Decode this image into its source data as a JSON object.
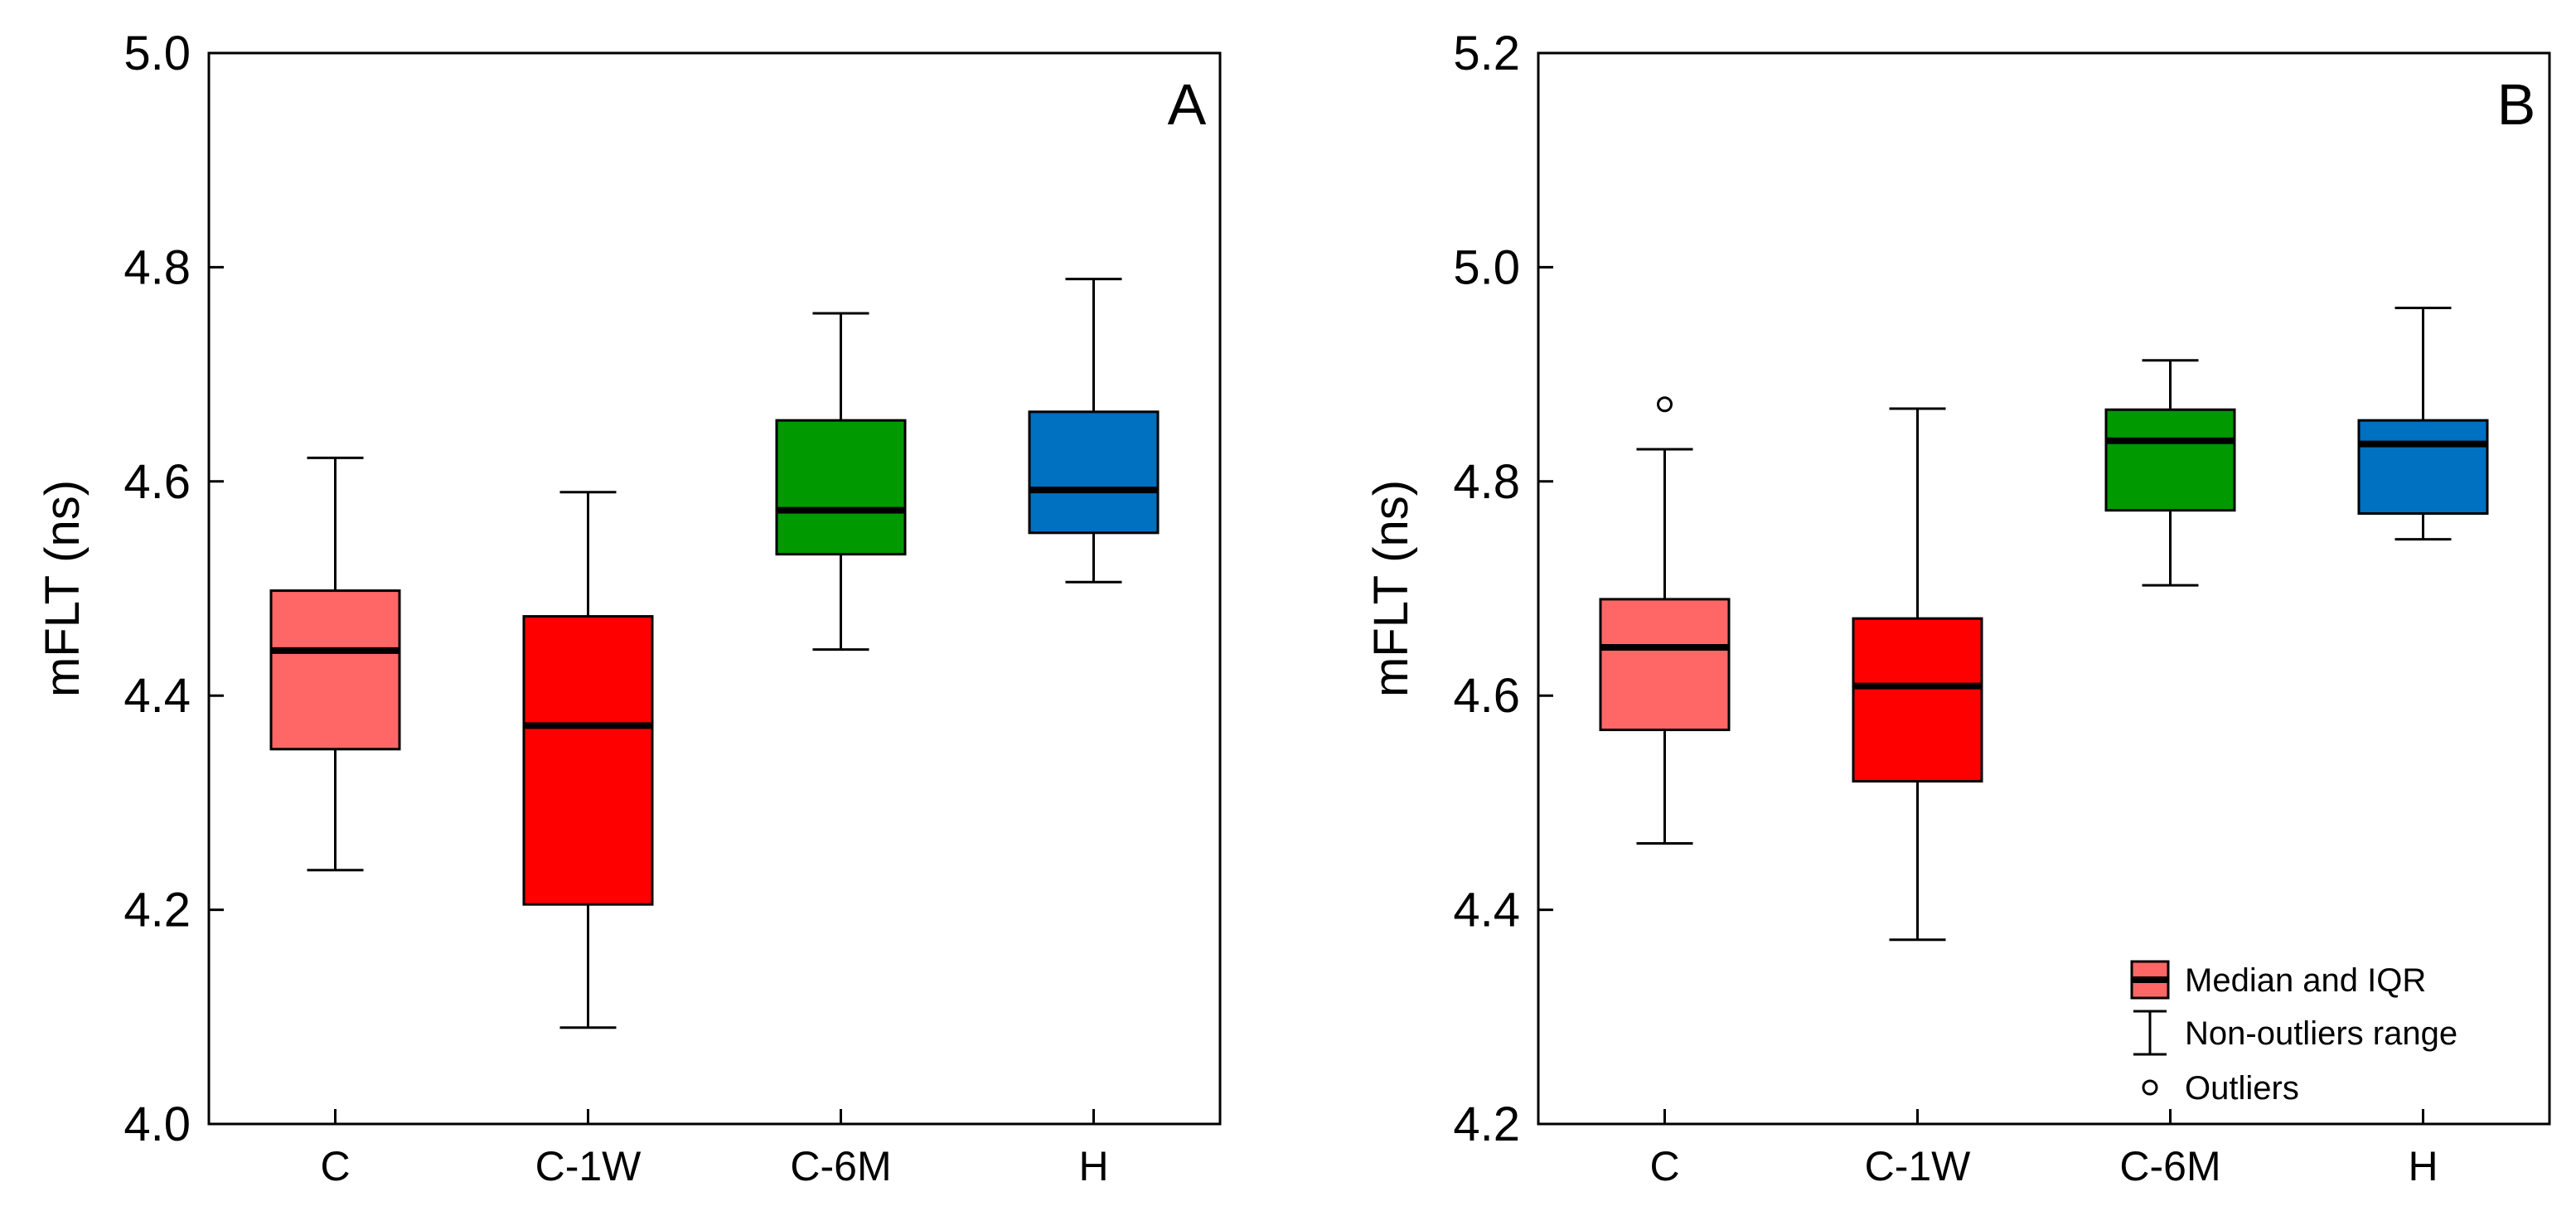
{
  "chart_data": [
    {
      "type": "boxplot",
      "panel_label": "A",
      "ylabel": "mFLT (ns)",
      "xlabel": "",
      "ylim": [
        4.0,
        5.0
      ],
      "yticks": [
        4.0,
        4.2,
        4.4,
        4.6,
        4.8,
        5.0
      ],
      "ytick_labels": [
        "4.0",
        "4.2",
        "4.4",
        "4.6",
        "4.8",
        "5.0"
      ],
      "categories": [
        "C",
        "C-1W",
        "C-6M",
        "H"
      ],
      "boxes": [
        {
          "category": "C",
          "min": 4.237,
          "q1": 4.35,
          "median": 4.442,
          "q3": 4.498,
          "max": 4.622,
          "color": "#ff6666",
          "outliers": []
        },
        {
          "category": "C-1W",
          "min": 4.09,
          "q1": 4.205,
          "median": 4.372,
          "q3": 4.474,
          "max": 4.59,
          "color": "#ff0000",
          "outliers": []
        },
        {
          "category": "C-6M",
          "min": 4.443,
          "q1": 4.532,
          "median": 4.573,
          "q3": 4.657,
          "max": 4.757,
          "color": "#009900",
          "outliers": []
        },
        {
          "category": "H",
          "min": 4.506,
          "q1": 4.552,
          "median": 4.592,
          "q3": 4.665,
          "max": 4.789,
          "color": "#0070c0",
          "outliers": []
        }
      ]
    },
    {
      "type": "boxplot",
      "panel_label": "B",
      "ylabel": "mFLT (ns)",
      "xlabel": "",
      "ylim": [
        4.2,
        5.2
      ],
      "yticks": [
        4.2,
        4.4,
        4.6,
        4.8,
        5.0,
        5.2
      ],
      "ytick_labels": [
        "4.2",
        "4.4",
        "4.6",
        "4.8",
        "5.0",
        "5.2"
      ],
      "categories": [
        "C",
        "C-1W",
        "C-6M",
        "H"
      ],
      "boxes": [
        {
          "category": "C",
          "min": 4.462,
          "q1": 4.568,
          "median": 4.645,
          "q3": 4.69,
          "max": 4.83,
          "color": "#ff6666",
          "outliers": [
            4.872
          ]
        },
        {
          "category": "C-1W",
          "min": 4.372,
          "q1": 4.52,
          "median": 4.609,
          "q3": 4.672,
          "max": 4.868,
          "color": "#ff0000",
          "outliers": []
        },
        {
          "category": "C-6M",
          "min": 4.703,
          "q1": 4.773,
          "median": 4.838,
          "q3": 4.867,
          "max": 4.913,
          "color": "#009900",
          "outliers": []
        },
        {
          "category": "H",
          "min": 4.746,
          "q1": 4.77,
          "median": 4.835,
          "q3": 4.857,
          "max": 4.962,
          "color": "#0070c0",
          "outliers": []
        }
      ],
      "legend": {
        "placement": "bottom-right",
        "entries": [
          "Median and IQR",
          "Non-outliers range",
          "Outliers"
        ]
      }
    }
  ]
}
